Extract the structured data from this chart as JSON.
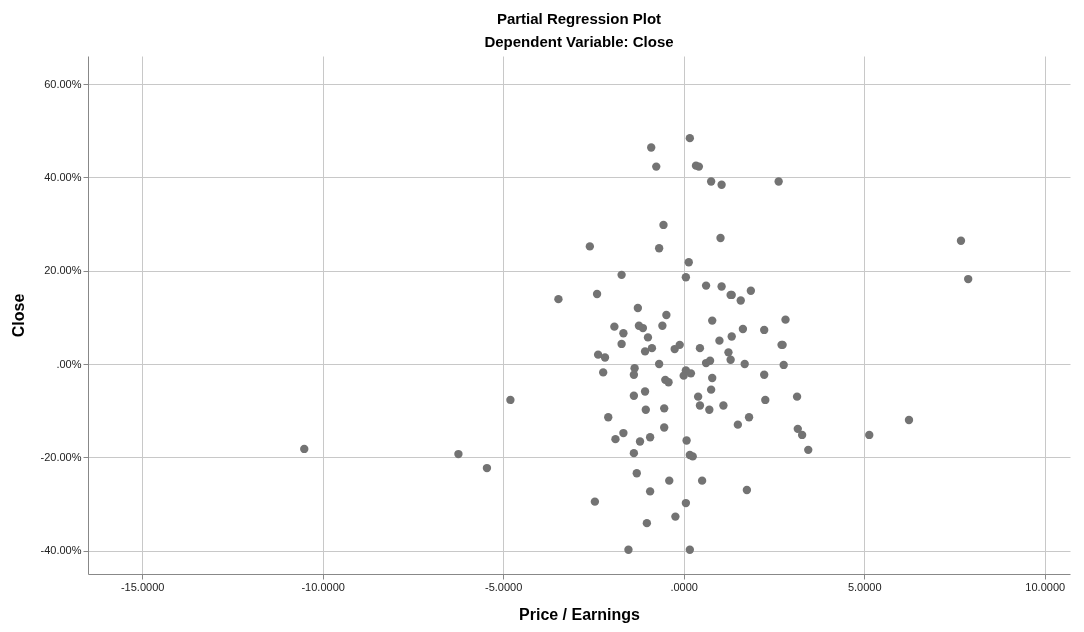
{
  "chart_data": {
    "type": "scatter",
    "title": "Partial Regression Plot",
    "subtitle": "Dependent Variable: Close",
    "xlabel": "Price / Earnings",
    "ylabel": "Close",
    "xlim": [
      -16.5,
      10.7
    ],
    "ylim": [
      -45,
      66
    ],
    "xticks": [
      {
        "value": -15,
        "label": "-15.0000"
      },
      {
        "value": -10,
        "label": "-10.0000"
      },
      {
        "value": -5,
        "label": "-5.0000"
      },
      {
        "value": 0,
        "label": ".0000"
      },
      {
        "value": 5,
        "label": "5.0000"
      },
      {
        "value": 10,
        "label": "10.0000"
      }
    ],
    "yticks": [
      {
        "value": -40,
        "label": "-40.00%"
      },
      {
        "value": -20,
        "label": "-20.00%"
      },
      {
        "value": 0,
        "label": ".00%"
      },
      {
        "value": 20,
        "label": "20.00%"
      },
      {
        "value": 40,
        "label": "40.00%"
      },
      {
        "value": 60,
        "label": "60.00%"
      }
    ],
    "grid": true,
    "marker": "circle",
    "series": [
      {
        "color": "#737373",
        "x": [
          -10.51,
          -6.24,
          -5.45,
          -4.8,
          -3.47,
          -2.6,
          -2.4,
          -0.9,
          -0.76,
          0.17,
          0.34,
          0.42,
          0.76,
          1.05,
          2.63,
          -0.56,
          1.02,
          -0.68,
          0.14,
          -1.72,
          0.06,
          0.62,
          1.05,
          1.33,
          1.58,
          1.86,
          1.3,
          -1.27,
          -0.48,
          0.79,
          2.82,
          -0.59,
          -1.92,
          -1.67,
          -1.24,
          -1.13,
          -0.99,
          1.64,
          2.23,
          1.33,
          0.99,
          2.74,
          -1.72,
          -0.88,
          -1.07,
          -0.25,
          -0.11,
          0.45,
          1.24,
          1.3,
          -2.37,
          -2.18,
          -0.68,
          -1.36,
          -1.38,
          -2.23,
          0.06,
          0.2,
          0.0,
          0.62,
          0.73,
          -0.51,
          -0.42,
          0.79,
          0.76,
          -1.07,
          -1.38,
          0.4,
          0.45,
          0.71,
          1.1,
          -0.54,
          -1.05,
          -2.09,
          -0.54,
          -1.67,
          -1.89,
          -1.21,
          -0.93,
          0.08,
          -1.38,
          0.17,
          0.25,
          -1.3,
          -0.4,
          0.51,
          -0.93,
          -2.46,
          0.06,
          -0.23,
          -1.02,
          -1.53,
          0.17,
          2.71,
          1.69,
          2.77,
          2.23,
          2.26,
          3.14,
          1.81,
          1.5,
          3.16,
          3.28,
          3.45,
          5.14,
          6.24,
          1.75,
          7.68,
          7.88
        ],
        "values": [
          -18.2,
          -19.3,
          -22.3,
          -7.7,
          13.9,
          25.2,
          15.0,
          46.4,
          42.3,
          48.4,
          42.5,
          42.3,
          39.1,
          38.4,
          39.1,
          29.8,
          27.0,
          24.8,
          21.8,
          19.1,
          18.6,
          16.8,
          16.6,
          14.8,
          13.6,
          15.7,
          14.8,
          12.0,
          10.5,
          9.3,
          9.5,
          8.2,
          8.0,
          6.6,
          8.2,
          7.7,
          5.7,
          7.5,
          7.3,
          5.9,
          5.0,
          4.1,
          4.3,
          3.4,
          2.7,
          3.2,
          4.1,
          3.4,
          2.5,
          0.9,
          2.0,
          1.4,
          0.0,
          -0.9,
          -2.3,
          -1.8,
          -1.4,
          -2.0,
          -2.5,
          0.2,
          0.7,
          -3.4,
          -3.9,
          -3.0,
          -5.5,
          -5.9,
          -6.8,
          -7.0,
          -8.9,
          -9.8,
          -8.9,
          -9.5,
          -9.8,
          -11.4,
          -13.6,
          -14.8,
          -16.1,
          -16.6,
          -15.7,
          -16.4,
          -19.1,
          -19.5,
          -19.8,
          -23.4,
          -25.0,
          -25.0,
          -27.3,
          -29.5,
          -29.8,
          -32.7,
          -34.1,
          -39.8,
          -39.8,
          4.1,
          0.0,
          -0.2,
          -2.3,
          -7.7,
          -7.0,
          -11.4,
          -13.0,
          -13.9,
          -15.2,
          -18.4,
          -15.2,
          -12.0,
          -27.0,
          26.4,
          18.2
        ]
      }
    ]
  }
}
